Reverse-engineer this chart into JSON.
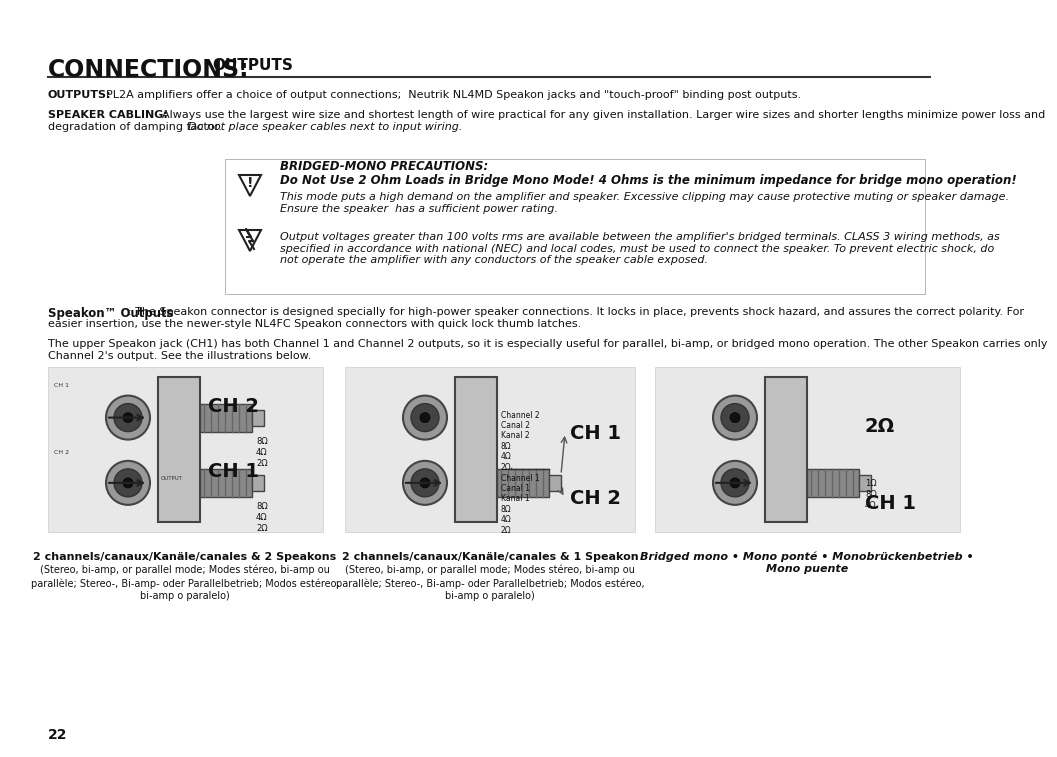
{
  "title_bold": "CONNECTIONS:",
  "title_small": " OUTPUTS",
  "bg_color": "#ffffff",
  "text_color": "#000000",
  "line_color": "#333333",
  "page_number": "22",
  "outputs_label": "OUTPUTS:",
  "outputs_text": "PL2A amplifiers offer a choice of output connections;  Neutrik NL4MD Speakon jacks and \"touch-proof\" binding post outputs.",
  "speaker_label": "SPEAKER CABLING:",
  "speaker_text": "Always use the largest wire size and shortest length of wire practical for any given installation. Larger wire sizes and shorter lengths minimize power loss and\ndegradation of damping factor. Do not place speaker cables next to input wiring.",
  "bridged_header": "BRIDGED-MONO PRECAUTIONS:",
  "bridged_line1": "Do Not Use 2 Ohm Loads in Bridge Mono Mode! 4 Ohms is the minimum impedance for bridge mono operation!",
  "bridged_line2": "This mode puts a high demand on the amplifier and speaker. Excessive clipping may cause protective muting or speaker damage.\nEnsure the speaker  has a sufficient power rating.",
  "lightning_text": "Output voltages greater than 100 volts rms are available between the amplifier's bridged terminals. CLASS 3 wiring methods, as\nspecified in accordance with national (NEC) and local codes, must be used to connect the speaker. To prevent electric shock, do\nnot operate the amplifier with any conductors of the speaker cable exposed.",
  "speakon_label": "Speakon™ Outputs",
  "speakon_text": ": The Speakon connector is designed specially for high-power speaker connections. It locks in place, prevents shock hazard, and assures the correct polarity. For\neasier insertion, use the newer-style NL4FC Speakon connectors with quick lock thumb latches.",
  "upper_speakon_text": "The upper Speakon jack (CH1) has both Channel 1 and Channel 2 outputs, so it is especially useful for parallel, bi-amp, or bridged mono operation. The other Speakon carries only\nChannel 2's output. See the illustrations below.",
  "diagram1_label": "2 channels/canaux/Kanäle/canales & 2 Speakons",
  "diagram1_sub": "(Stereo, bi-amp, or parallel mode; Modes stéreo, bi-amp ou\nparallèle; Stereo-, Bi-amp- oder Parallelbetrieb; Modos estéreo,\nbi-amp o paralelo)",
  "diagram2_label": "2 channels/canaux/Kanäle/canales & 1 Speakon",
  "diagram2_sub": "(Stereo, bi-amp, or parallel mode; Modes stéreo, bi-amp ou\nparallèle; Stereo-, Bi-amp- oder Parallelbetrieb; Modos estéreo,\nbi-amp o paralelo)",
  "diagram3_label": "Bridged mono • Mono ponté • Monobrückenbetrieb •\nMono puente",
  "ch1_label": "CH 1",
  "ch2_label": "CH 2"
}
